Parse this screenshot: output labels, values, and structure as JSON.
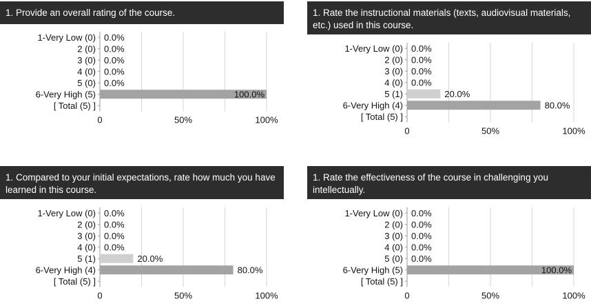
{
  "chart_data": [
    {
      "type": "bar",
      "title": "1. Provide an overall rating of the course.",
      "categories": [
        "1-Very Low (0)",
        "2 (0)",
        "3 (0)",
        "4 (0)",
        "5 (0)",
        "6-Very High (5)"
      ],
      "values": [
        0.0,
        0.0,
        0.0,
        0.0,
        0.0,
        100.0
      ],
      "value_labels": [
        "0.0%",
        "0.0%",
        "0.0%",
        "0.0%",
        "0.0%",
        "100.0%"
      ],
      "total_label": "[ Total (5) ]",
      "xticks": [
        "0",
        "50%",
        "100%"
      ],
      "xlim": [
        0,
        100
      ],
      "grid": true
    },
    {
      "type": "bar",
      "title": "1. Rate the instructional materials (texts, audiovisual materials, etc.) used in this course.",
      "categories": [
        "1-Very Low (0)",
        "2 (0)",
        "3 (0)",
        "4 (0)",
        "5 (1)",
        "6-Very High (4)"
      ],
      "values": [
        0.0,
        0.0,
        0.0,
        0.0,
        20.0,
        80.0
      ],
      "value_labels": [
        "0.0%",
        "0.0%",
        "0.0%",
        "0.0%",
        "20.0%",
        "80.0%"
      ],
      "total_label": "[ Total (5) ]",
      "xticks": [
        "0",
        "50%",
        "100%"
      ],
      "xlim": [
        0,
        100
      ],
      "grid": true
    },
    {
      "type": "bar",
      "title": "1. Compared to your initial expectations, rate how much you have learned in this course.",
      "categories": [
        "1-Very Low (0)",
        "2 (0)",
        "3 (0)",
        "4 (0)",
        "5 (1)",
        "6-Very High (4)"
      ],
      "values": [
        0.0,
        0.0,
        0.0,
        0.0,
        20.0,
        80.0
      ],
      "value_labels": [
        "0.0%",
        "0.0%",
        "0.0%",
        "0.0%",
        "20.0%",
        "80.0%"
      ],
      "total_label": "[ Total (5) ]",
      "xticks": [
        "0",
        "50%",
        "100%"
      ],
      "xlim": [
        0,
        100
      ],
      "grid": true
    },
    {
      "type": "bar",
      "title": "1. Rate the effectiveness of the course in challenging you intellectually.",
      "categories": [
        "1-Very Low (0)",
        "2 (0)",
        "3 (0)",
        "4 (0)",
        "5 (0)",
        "6-Very High (5)"
      ],
      "values": [
        0.0,
        0.0,
        0.0,
        0.0,
        0.0,
        100.0
      ],
      "value_labels": [
        "0.0%",
        "0.0%",
        "0.0%",
        "0.0%",
        "0.0%",
        "100.0%"
      ],
      "total_label": "[ Total (5) ]",
      "xticks": [
        "0",
        "50%",
        "100%"
      ],
      "xlim": [
        0,
        100
      ],
      "grid": true
    }
  ],
  "colors": {
    "header_bg": "#2d2d2d",
    "header_text": "#ffffff",
    "bar_high": "#a3a3a3",
    "bar_mid": "#d0d0d0",
    "grid": "#d6d6d6",
    "axis": "#999999"
  }
}
